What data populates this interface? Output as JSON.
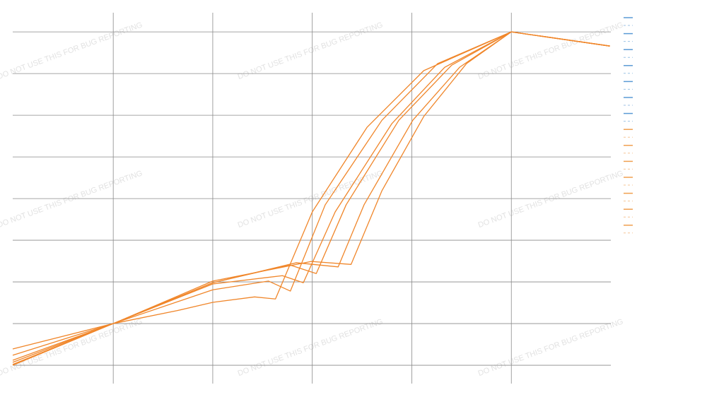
{
  "chart_data": {
    "type": "line",
    "watermark": "DO NOT USE THIS FOR BUG REPORTING",
    "xlim": [
      -1.01,
      5
    ],
    "xticks": [
      0,
      1,
      2,
      3,
      4
    ],
    "ylim": [
      -0.44,
      8.46
    ],
    "yticks": [
      0,
      1,
      2,
      3,
      4,
      5,
      6,
      7,
      8
    ],
    "grid": true,
    "series": [
      {
        "color": "#f0862a",
        "x": [
          -1.01,
          0,
          0.64,
          1,
          1.42,
          1.63,
          2,
          2.55,
          3.12,
          4,
          4.99
        ],
        "values": [
          0,
          1,
          1.31,
          1.51,
          1.64,
          1.59,
          3.68,
          5.71,
          7.07,
          8,
          7.66
        ]
      },
      {
        "color": "#f0862a",
        "x": [
          -1.01,
          0,
          1,
          1.56,
          1.78,
          2.13,
          2.7,
          3.26,
          4,
          4.99
        ],
        "values": [
          0.07,
          1,
          1.81,
          2.02,
          1.78,
          3.85,
          5.88,
          7.24,
          8,
          7.66
        ]
      },
      {
        "color": "#f0862a",
        "x": [
          -1.01,
          0,
          1,
          1.7,
          1.91,
          2.23,
          2.8,
          3.33,
          4,
          4.99
        ],
        "values": [
          0.39,
          1,
          1.95,
          2.15,
          1.98,
          3.68,
          5.8,
          7.15,
          8,
          7.66
        ]
      },
      {
        "color": "#f0862a",
        "x": [
          -1.01,
          0,
          1,
          1.77,
          2.04,
          2.34,
          2.87,
          3.4,
          4,
          4.99
        ],
        "values": [
          0.24,
          1,
          1.98,
          2.41,
          2.2,
          3.85,
          5.88,
          7.2,
          8,
          7.66
        ]
      },
      {
        "color": "#f0862a",
        "x": [
          -1.01,
          0,
          1,
          1.84,
          2.26,
          2.52,
          3.01,
          3.48,
          4,
          4.99
        ],
        "values": [
          0.02,
          1,
          1.98,
          2.46,
          2.36,
          3.85,
          5.88,
          7.15,
          8,
          7.66
        ]
      },
      {
        "color": "#f0862a",
        "x": [
          -1.01,
          0,
          1,
          1.99,
          2.39,
          2.7,
          3.12,
          3.55,
          4,
          4.99
        ],
        "values": [
          0.12,
          1,
          2.02,
          2.49,
          2.42,
          4.19,
          5.97,
          7.24,
          8,
          7.66
        ]
      }
    ]
  }
}
